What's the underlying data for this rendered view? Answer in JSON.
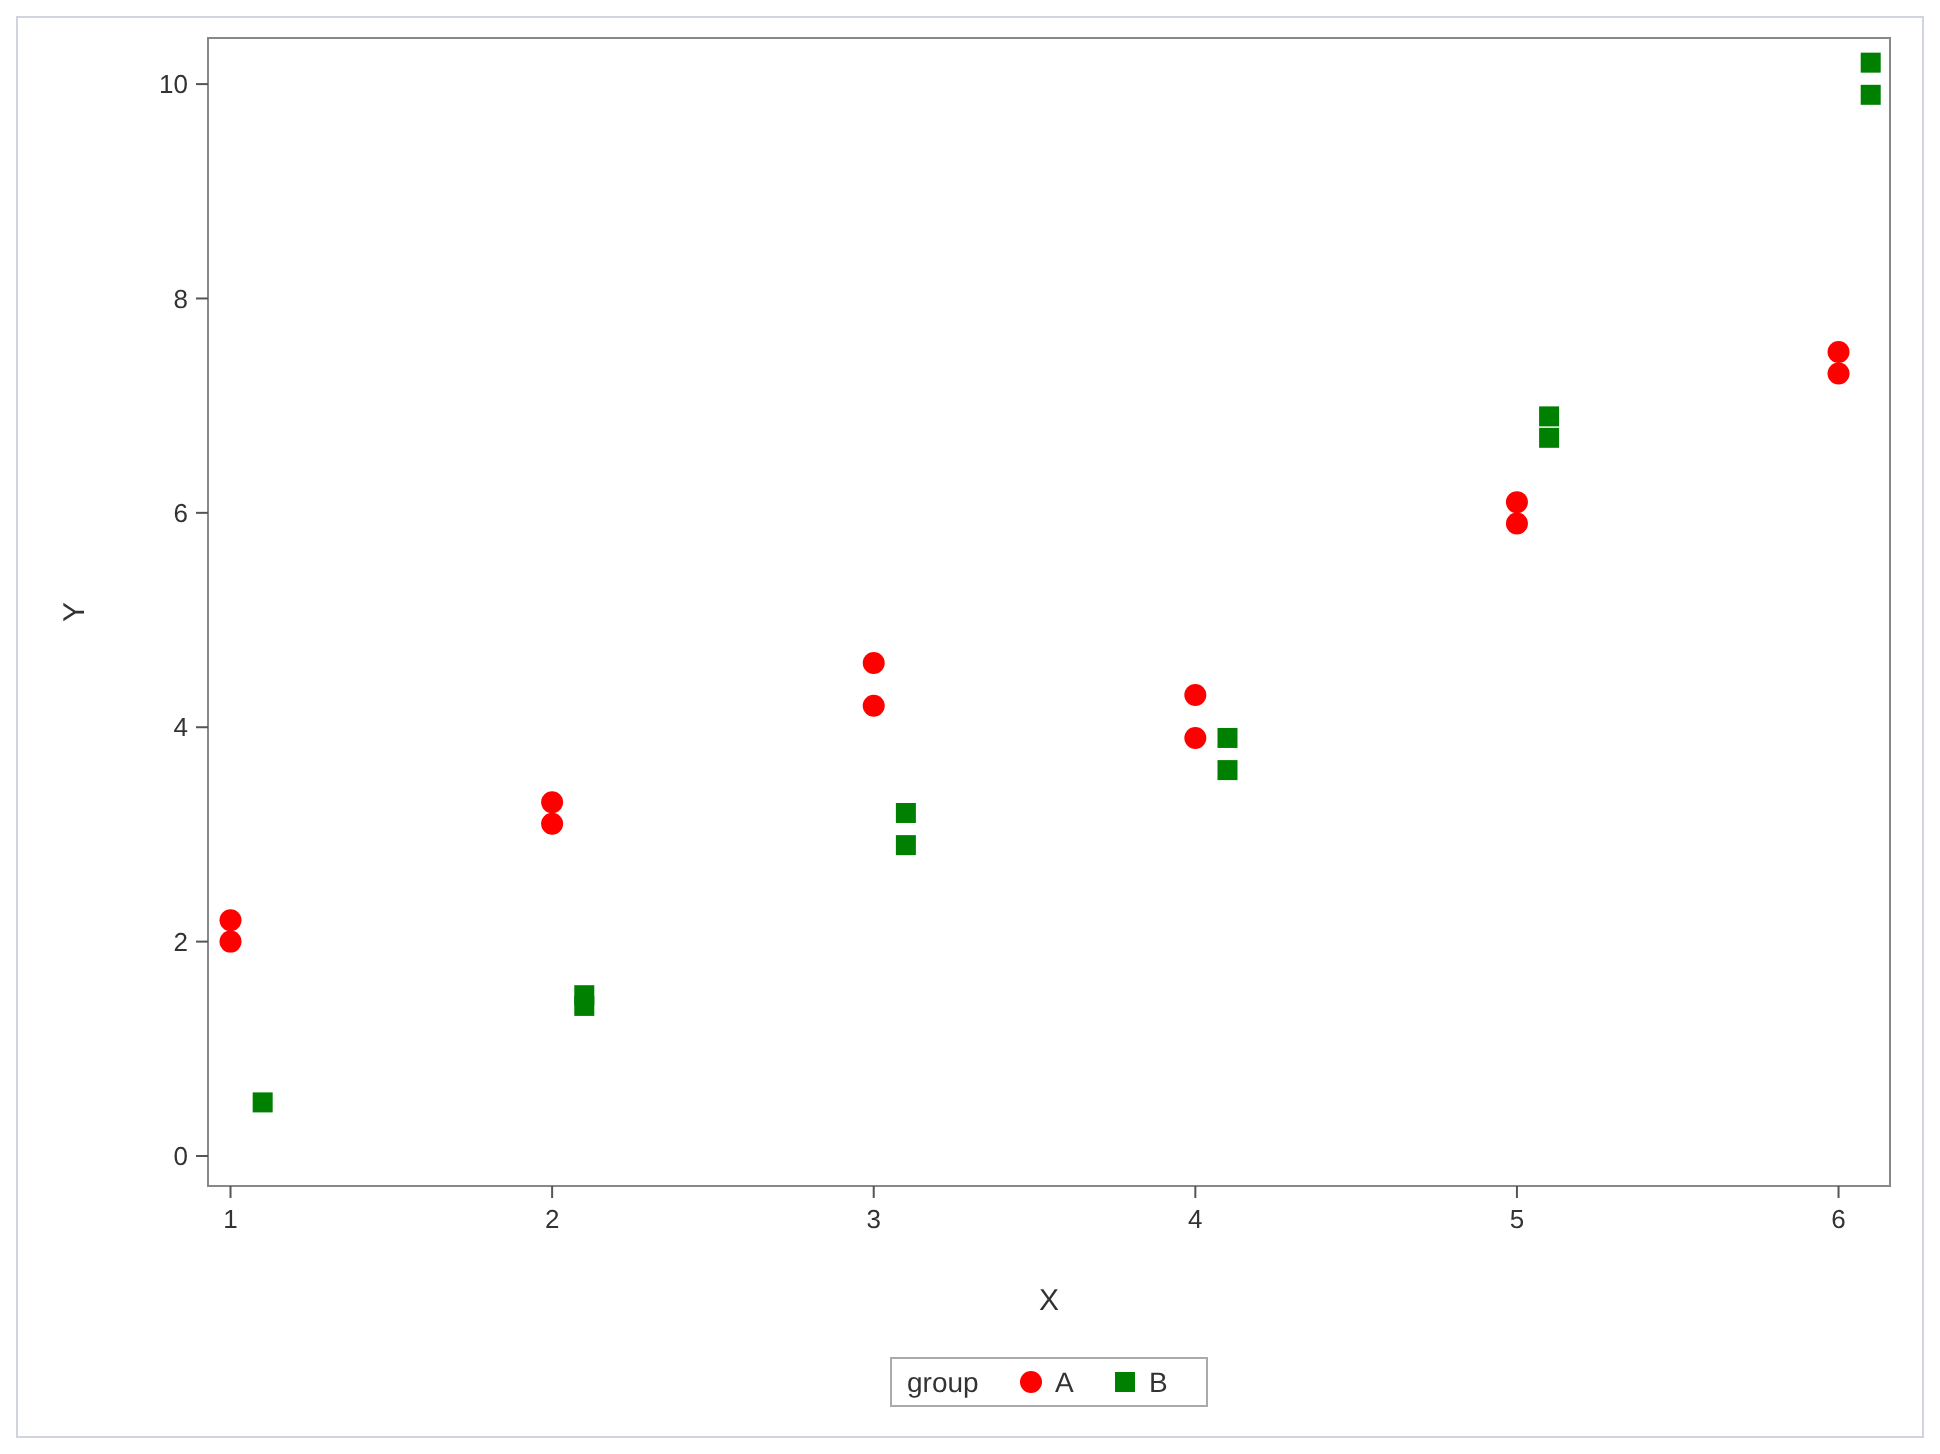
{
  "chart_data": {
    "type": "scatter",
    "xlabel": "X",
    "ylabel": "Y",
    "legend_title": "group",
    "legend": "bottom",
    "grid": false,
    "xlim": [
      0.93,
      6.16
    ],
    "xticks": [
      1,
      2,
      3,
      4,
      5,
      6
    ],
    "ylim": [
      -0.28,
      10.43
    ],
    "yticks": [
      0,
      2,
      4,
      6,
      8,
      10
    ],
    "series": [
      {
        "name": "A",
        "color": "#ff0000",
        "marker": "circle",
        "x": [
          1,
          1,
          2,
          2,
          3,
          3,
          4,
          4,
          5,
          5,
          6,
          6
        ],
        "values": [
          2.2,
          2.0,
          3.3,
          3.1,
          4.6,
          4.2,
          4.3,
          3.9,
          6.1,
          5.9,
          7.5,
          7.3
        ]
      },
      {
        "name": "B",
        "color": "#008000",
        "marker": "square",
        "x": [
          1.1,
          2.1,
          2.1,
          3.1,
          3.1,
          4.1,
          4.1,
          5.1,
          5.1,
          6.1,
          6.1
        ],
        "values": [
          0.5,
          1.5,
          1.4,
          3.2,
          2.9,
          3.9,
          3.6,
          6.9,
          6.7,
          10.2,
          9.9
        ]
      }
    ]
  }
}
